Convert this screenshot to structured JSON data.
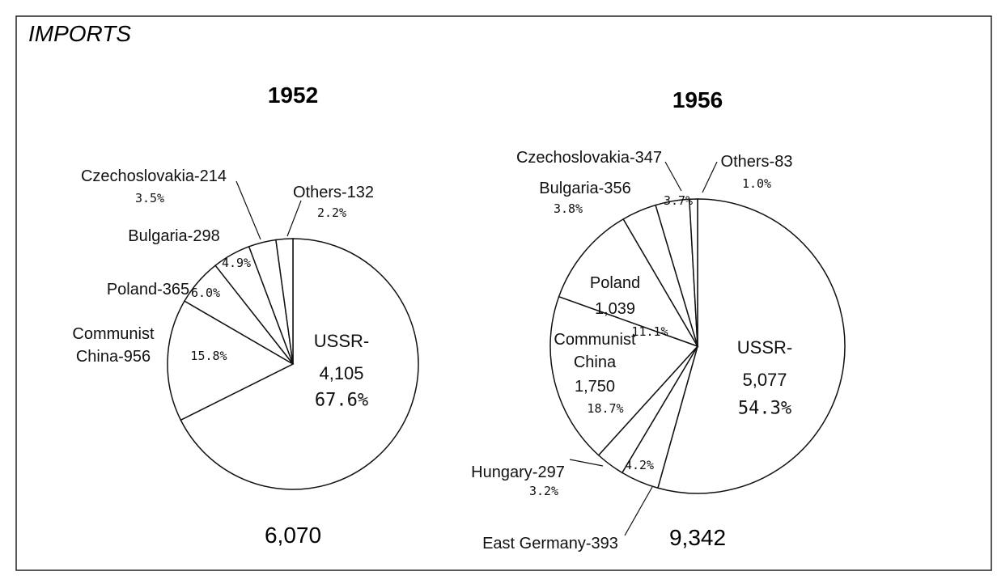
{
  "title": "IMPORTS",
  "chart_data": [
    {
      "type": "pie",
      "title": "1952",
      "categories": [
        "USSR-",
        "Communist China-",
        "Poland-",
        "Bulgaria-",
        "Czechoslovakia-",
        "Others-"
      ],
      "values": [
        4105,
        956,
        365,
        298,
        214,
        132
      ],
      "value_labels": [
        "4,105",
        "956",
        "365",
        "298",
        "214",
        "132"
      ],
      "percent_labels": [
        "67.6%",
        "15.8%",
        "6.0%",
        "4.9%",
        "3.5%",
        "2.2%"
      ],
      "total": "6,070",
      "color": "#ffffff"
    },
    {
      "type": "pie",
      "title": "1956",
      "categories": [
        "USSR-",
        "East Germany-",
        "Hungary-",
        "Communist China",
        "Poland",
        "Bulgaria-",
        "Czechoslovakia-",
        "Others-"
      ],
      "values": [
        5077,
        393,
        297,
        1750,
        1039,
        356,
        347,
        83
      ],
      "value_labels": [
        "5,077",
        "393",
        "297",
        "1,750",
        "1,039",
        "356",
        "347",
        "83"
      ],
      "percent_labels": [
        "54.3%",
        "4.2%",
        "3.2%",
        "18.7%",
        "11.1%",
        "3.8%",
        "3.7%",
        "1.0%"
      ],
      "total": "9,342",
      "color": "#ffffff"
    }
  ]
}
